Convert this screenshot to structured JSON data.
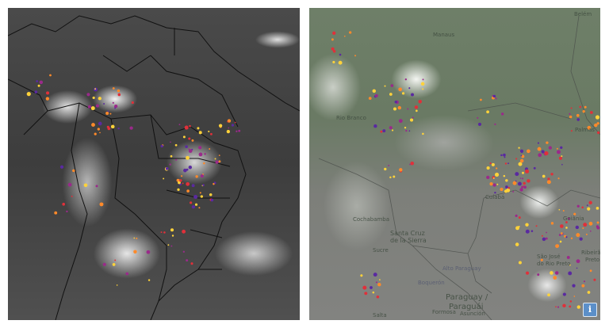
{
  "left_map": {
    "description_colors": {
      "land": "#444444",
      "cloud": "#e6e6e6",
      "border": "#111111"
    }
  },
  "right_map": {
    "labels": {
      "belem": "Belém",
      "manaus": "Manaus",
      "rio_branco": "Rio Branco",
      "palmas": "Palmas",
      "cuiaba": "Cuiabá",
      "goiania": "Goiânia",
      "santa_cruz_1": "Santa Cruz",
      "santa_cruz_2": "de la Sierra",
      "cochabamba": "Cochabamba",
      "sucre": "Sucre",
      "alto_paraguay": "Alto Paraguay",
      "boqueron": "Boquerón",
      "paraguay_1": "Paraguay /",
      "paraguay_2": "Paraguái",
      "asuncion": "Asunción",
      "formosa": "Formosa",
      "salta": "Salta",
      "sao_jose_1": "São José",
      "sao_jose_2": "do Rio Preto",
      "ribeirao_1": "Ribeirão",
      "ribeirao_2": "Preto"
    },
    "info_button": "i",
    "info_icon": "info-icon"
  },
  "lightning_colors": [
    "#ffd23a",
    "#ff8a2a",
    "#e0303a",
    "#9a2a8a",
    "#5a2aa0"
  ]
}
